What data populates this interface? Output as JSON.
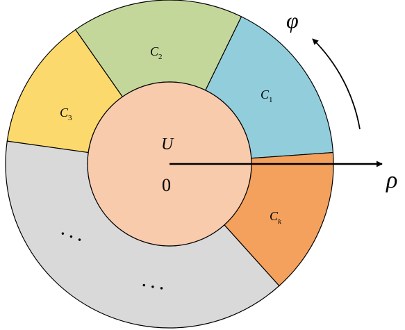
{
  "diagram": {
    "center_label": "U",
    "origin_label": "0",
    "radial_axis_label": "ρ",
    "angular_label": "φ",
    "sectors": [
      {
        "name": "C",
        "sub": "1",
        "color": "#92cddc"
      },
      {
        "name": "C",
        "sub": "2",
        "color": "#c4d79b"
      },
      {
        "name": "C",
        "sub": "3",
        "color": "#fcd96c"
      },
      {
        "name": "",
        "sub": "",
        "color": "#d9d9d9",
        "ellipsis": [
          "· · ·",
          "· · ·"
        ]
      },
      {
        "name": "C",
        "sub": "k",
        "color": "#f4a15d"
      }
    ],
    "inner_disk_color": "#f8cbad",
    "outline_color": "#000000"
  }
}
